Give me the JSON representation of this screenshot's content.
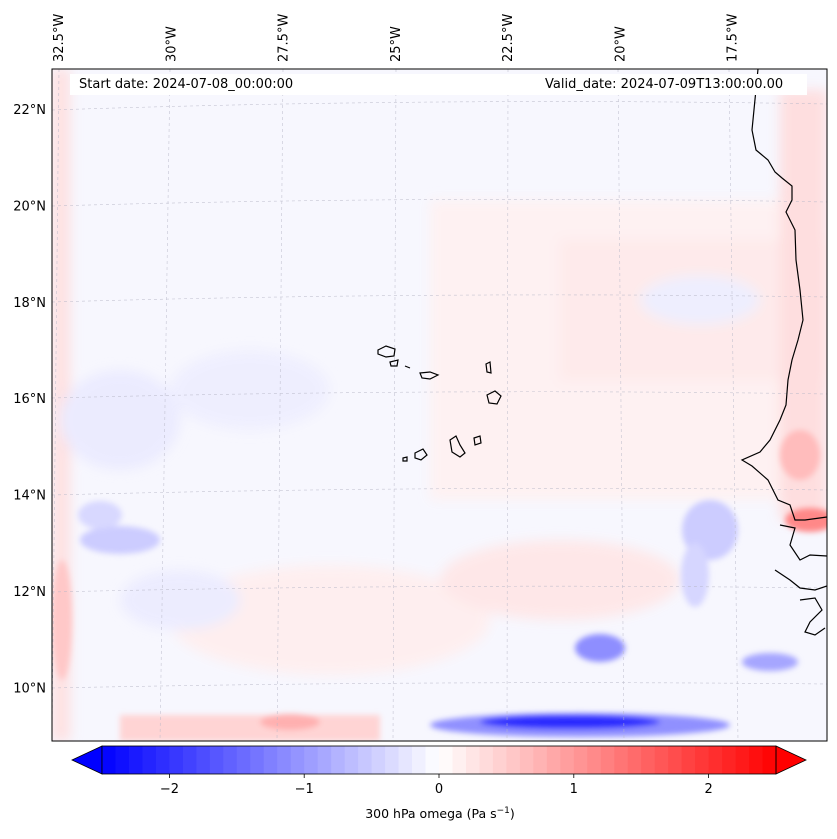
{
  "header": {
    "start_date": "Start date: 2024-07-08_00:00:00",
    "valid_date": "Valid_date: 2024-07-09T13:00:00.00"
  },
  "map": {
    "projection": "lambert-conformal",
    "extent": {
      "lon_min": -32.5,
      "lon_max": -15.6,
      "lat_min": 8.9,
      "lat_max": 22.7
    },
    "lon_ticks": [
      {
        "value": -32.5,
        "label": "32.5°W"
      },
      {
        "value": -30,
        "label": "30°W"
      },
      {
        "value": -27.5,
        "label": "27.5°W"
      },
      {
        "value": -25,
        "label": "25°W"
      },
      {
        "value": -22.5,
        "label": "22.5°W"
      },
      {
        "value": -20,
        "label": "20°W"
      },
      {
        "value": -17.5,
        "label": "17.5°W"
      }
    ],
    "lat_ticks": [
      {
        "value": 22,
        "label": "22°N"
      },
      {
        "value": 20,
        "label": "20°N"
      },
      {
        "value": 18,
        "label": "18°N"
      },
      {
        "value": 16,
        "label": "16°N"
      },
      {
        "value": 14,
        "label": "14°N"
      },
      {
        "value": 12,
        "label": "12°N"
      },
      {
        "value": 10,
        "label": "10°N"
      }
    ]
  },
  "colorbar": {
    "label": "300 hPa omega (Pa s",
    "label_superscript": "−1",
    "label_suffix": ")",
    "min": -2.5,
    "max": 2.5,
    "ticks": [
      {
        "value": -2,
        "label": "−2"
      },
      {
        "value": -1,
        "label": "−1"
      },
      {
        "value": 0,
        "label": "0"
      },
      {
        "value": 1,
        "label": "1"
      },
      {
        "value": 2,
        "label": "2"
      }
    ],
    "color_low": "#0000ff",
    "color_mid": "#ffffff",
    "color_high": "#ff0000"
  }
}
